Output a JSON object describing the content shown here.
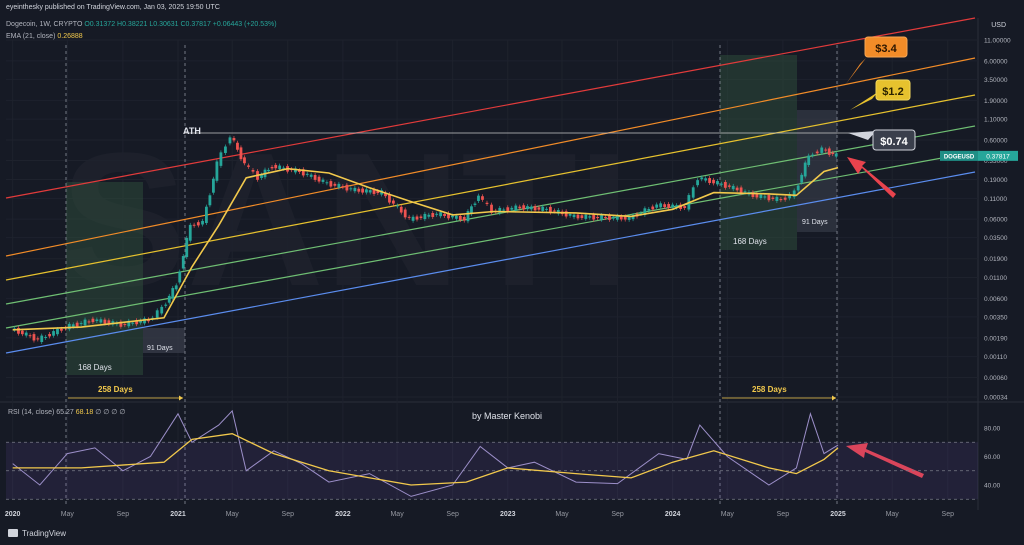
{
  "header": {
    "published": "eyeinthesky published on TradingView.com, Jan 03, 2025 19:50 UTC",
    "symbol": "Dogecoin, 1W, CRYPTO",
    "ohlc": "O0.31372 H0.38221 L0.30631 C0.37817 +0.06443 (+20.53%)",
    "ema_label": "EMA (21, close)",
    "ema_value": "0.26888"
  },
  "rsi_header": {
    "label": "RSI (14, close)",
    "v1": "65.27",
    "v2": "68.18",
    "nulls": "∅ ∅ ∅ ∅"
  },
  "currency": "USD",
  "footer": {
    "brand": "TradingView"
  },
  "colors": {
    "background": "#161a25",
    "up": "#26a69a",
    "down": "#ef5350",
    "ema": "#f2c94c",
    "red_channel": "#e23b3b",
    "orange_channel": "#f28c28",
    "yellow_channel": "#e7c22e",
    "green_channel": "#6fbf73",
    "blue_channel": "#5b8def",
    "rsi_line": "#9c8fc9",
    "arrow": "#e8434d"
  },
  "chart_data": {
    "type": "candlestick",
    "title": "Dogecoin, 1W, CRYPTO",
    "y_scale": "log",
    "y_ticks": [
      "11.00000",
      "6.00000",
      "3.50000",
      "1.90000",
      "1.10000",
      "0.60000",
      "0.33000",
      "0.19000",
      "0.11000",
      "0.06000",
      "0.03500",
      "0.01900",
      "0.01100",
      "0.00600",
      "0.00350",
      "0.00190",
      "0.00110",
      "0.00060",
      "0.00034"
    ],
    "x_ticks": [
      "2020",
      "May",
      "Sep",
      "2021",
      "May",
      "Sep",
      "2022",
      "May",
      "Sep",
      "2023",
      "May",
      "Sep",
      "2024",
      "May",
      "Sep",
      "2025",
      "May",
      "Sep"
    ],
    "last_price": {
      "label": "DOGEUSD",
      "value": "0.37817"
    },
    "price_path": [
      {
        "date": "2020-01",
        "close": 0.0025
      },
      {
        "date": "2020-03",
        "close": 0.0018
      },
      {
        "date": "2020-05",
        "close": 0.0026
      },
      {
        "date": "2020-07",
        "close": 0.0032
      },
      {
        "date": "2020-09",
        "close": 0.0028
      },
      {
        "date": "2020-11",
        "close": 0.0032
      },
      {
        "date": "2020-12",
        "close": 0.0045
      },
      {
        "date": "2021-01",
        "close": 0.009
      },
      {
        "date": "2021-02",
        "close": 0.05
      },
      {
        "date": "2021-03",
        "close": 0.055
      },
      {
        "date": "2021-04",
        "close": 0.3
      },
      {
        "date": "2021-05",
        "close": 0.68
      },
      {
        "date": "2021-06",
        "close": 0.3
      },
      {
        "date": "2021-07",
        "close": 0.2
      },
      {
        "date": "2021-08",
        "close": 0.28
      },
      {
        "date": "2021-10",
        "close": 0.24
      },
      {
        "date": "2021-12",
        "close": 0.17
      },
      {
        "date": "2022-02",
        "close": 0.14
      },
      {
        "date": "2022-04",
        "close": 0.13
      },
      {
        "date": "2022-06",
        "close": 0.06
      },
      {
        "date": "2022-08",
        "close": 0.07
      },
      {
        "date": "2022-10",
        "close": 0.06
      },
      {
        "date": "2022-11",
        "close": 0.12
      },
      {
        "date": "2022-12",
        "close": 0.075
      },
      {
        "date": "2023-02",
        "close": 0.085
      },
      {
        "date": "2023-04",
        "close": 0.08
      },
      {
        "date": "2023-06",
        "close": 0.065
      },
      {
        "date": "2023-08",
        "close": 0.063
      },
      {
        "date": "2023-10",
        "close": 0.062
      },
      {
        "date": "2023-12",
        "close": 0.09
      },
      {
        "date": "2024-02",
        "close": 0.085
      },
      {
        "date": "2024-03",
        "close": 0.2
      },
      {
        "date": "2024-05",
        "close": 0.16
      },
      {
        "date": "2024-07",
        "close": 0.12
      },
      {
        "date": "2024-09",
        "close": 0.105
      },
      {
        "date": "2024-10",
        "close": 0.13
      },
      {
        "date": "2024-11",
        "close": 0.38
      },
      {
        "date": "2024-12",
        "close": 0.46
      },
      {
        "date": "2025-01",
        "close": 0.378
      }
    ],
    "ema_path": [
      {
        "date": "2020-01",
        "value": 0.0024
      },
      {
        "date": "2020-06",
        "value": 0.0026
      },
      {
        "date": "2020-12",
        "value": 0.0034
      },
      {
        "date": "2021-02",
        "value": 0.015
      },
      {
        "date": "2021-04",
        "value": 0.05
      },
      {
        "date": "2021-06",
        "value": 0.2
      },
      {
        "date": "2021-09",
        "value": 0.26
      },
      {
        "date": "2021-12",
        "value": 0.23
      },
      {
        "date": "2022-03",
        "value": 0.15
      },
      {
        "date": "2022-06",
        "value": 0.1
      },
      {
        "date": "2022-09",
        "value": 0.068
      },
      {
        "date": "2022-12",
        "value": 0.075
      },
      {
        "date": "2023-06",
        "value": 0.072
      },
      {
        "date": "2023-10",
        "value": 0.065
      },
      {
        "date": "2024-01",
        "value": 0.08
      },
      {
        "date": "2024-04",
        "value": 0.13
      },
      {
        "date": "2024-08",
        "value": 0.125
      },
      {
        "date": "2024-10",
        "value": 0.12
      },
      {
        "date": "2024-12",
        "value": 0.24
      },
      {
        "date": "2025-01",
        "value": 0.26888
      }
    ],
    "rsi": {
      "levels": [
        70,
        50,
        30
      ],
      "y_ticks": [
        "80.00",
        "60.00",
        "40.00"
      ],
      "values": [
        {
          "date": "2020-01",
          "v": 55
        },
        {
          "date": "2020-03",
          "v": 40
        },
        {
          "date": "2020-05",
          "v": 62
        },
        {
          "date": "2020-07",
          "v": 66
        },
        {
          "date": "2020-09",
          "v": 50
        },
        {
          "date": "2020-11",
          "v": 60
        },
        {
          "date": "2021-01",
          "v": 90
        },
        {
          "date": "2021-02",
          "v": 70
        },
        {
          "date": "2021-04",
          "v": 82
        },
        {
          "date": "2021-05",
          "v": 92
        },
        {
          "date": "2021-06",
          "v": 50
        },
        {
          "date": "2021-08",
          "v": 64
        },
        {
          "date": "2021-10",
          "v": 55
        },
        {
          "date": "2021-12",
          "v": 42
        },
        {
          "date": "2022-03",
          "v": 48
        },
        {
          "date": "2022-06",
          "v": 32
        },
        {
          "date": "2022-09",
          "v": 40
        },
        {
          "date": "2022-11",
          "v": 67
        },
        {
          "date": "2023-01",
          "v": 52
        },
        {
          "date": "2023-03",
          "v": 56
        },
        {
          "date": "2023-06",
          "v": 42
        },
        {
          "date": "2023-09",
          "v": 41
        },
        {
          "date": "2023-12",
          "v": 62
        },
        {
          "date": "2024-02",
          "v": 58
        },
        {
          "date": "2024-03",
          "v": 82
        },
        {
          "date": "2024-05",
          "v": 60
        },
        {
          "date": "2024-08",
          "v": 40
        },
        {
          "date": "2024-10",
          "v": 52
        },
        {
          "date": "2024-11",
          "v": 90
        },
        {
          "date": "2024-12",
          "v": 62
        },
        {
          "date": "2025-01",
          "v": 68
        }
      ],
      "ma": [
        {
          "date": "2020-01",
          "v": 52
        },
        {
          "date": "2020-06",
          "v": 52
        },
        {
          "date": "2020-12",
          "v": 56
        },
        {
          "date": "2021-02",
          "v": 72
        },
        {
          "date": "2021-05",
          "v": 76
        },
        {
          "date": "2021-08",
          "v": 62
        },
        {
          "date": "2021-12",
          "v": 50
        },
        {
          "date": "2022-06",
          "v": 40
        },
        {
          "date": "2022-10",
          "v": 42
        },
        {
          "date": "2023-01",
          "v": 52
        },
        {
          "date": "2023-06",
          "v": 48
        },
        {
          "date": "2023-10",
          "v": 45
        },
        {
          "date": "2024-01",
          "v": 56
        },
        {
          "date": "2024-04",
          "v": 64
        },
        {
          "date": "2024-08",
          "v": 52
        },
        {
          "date": "2024-10",
          "v": 48
        },
        {
          "date": "2024-12",
          "v": 58
        },
        {
          "date": "2025-01",
          "v": 66
        }
      ]
    },
    "annotations": [
      {
        "text": "ATH"
      },
      {
        "text": "$0.74"
      },
      {
        "text": "$1.2"
      },
      {
        "text": "$3.4"
      },
      {
        "text": "168 Days"
      },
      {
        "text": "91 Days"
      },
      {
        "text": "258 Days"
      },
      {
        "text": "168 Days"
      },
      {
        "text": "91 Days"
      },
      {
        "text": "258 Days"
      },
      {
        "text": "by Master Kenobi"
      }
    ],
    "grid": true,
    "legend": "top-left"
  }
}
